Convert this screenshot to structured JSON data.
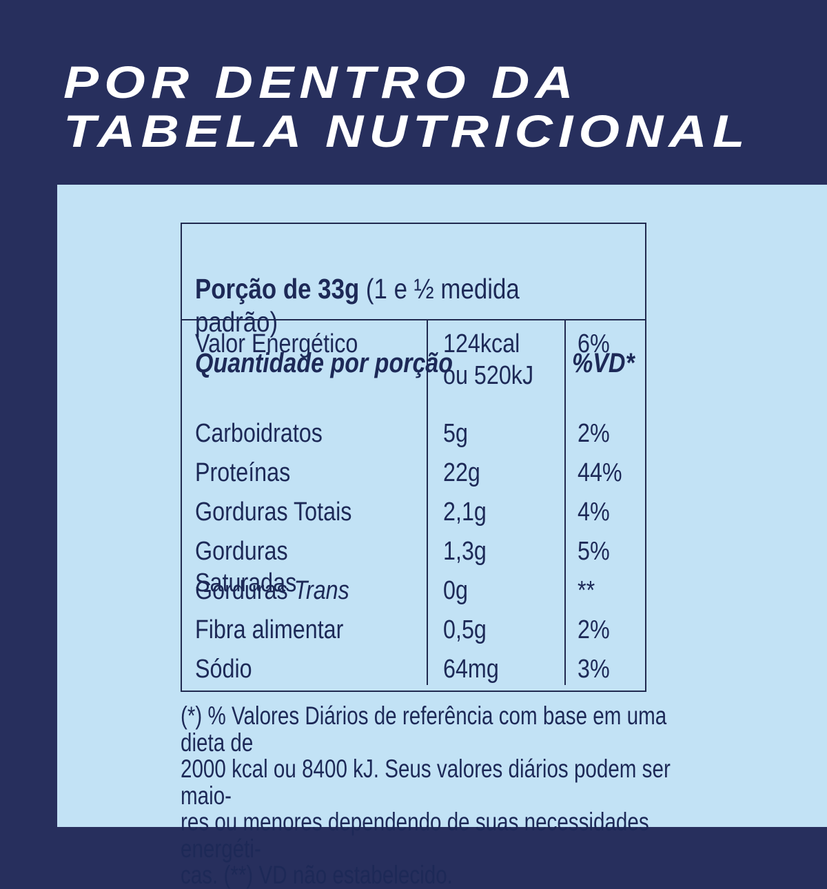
{
  "colors": {
    "background_navy": "#272f5d",
    "panel_light_blue": "#c2e2f5",
    "ink_navy": "#1d2957",
    "title_white": "#ffffff"
  },
  "title": {
    "line1": "POR DENTRO DA",
    "line2": "TABELA NUTRICIONAL"
  },
  "table": {
    "serving": {
      "label": "Porção de 33g",
      "note": "(1 e ½ medida padrão)"
    },
    "columns": {
      "quantity": "Quantidade por porção",
      "dv": "%VD*"
    },
    "rows": [
      {
        "name": "Valor Energético",
        "name_italic": "",
        "value": "124kcal\nou 520kJ",
        "dv": "6%"
      },
      {
        "name": "Carboidratos",
        "name_italic": "",
        "value": "5g",
        "dv": "2%"
      },
      {
        "name": "Proteínas",
        "name_italic": "",
        "value": "22g",
        "dv": "44%"
      },
      {
        "name": "Gorduras Totais",
        "name_italic": "",
        "value": "2,1g",
        "dv": "4%"
      },
      {
        "name": "Gorduras Saturadas",
        "name_italic": "",
        "value": "1,3g",
        "dv": "5%"
      },
      {
        "name": "Gorduras ",
        "name_italic": "Trans",
        "value": "0g",
        "dv": "**"
      },
      {
        "name": "Fibra alimentar",
        "name_italic": "",
        "value": "0,5g",
        "dv": "2%"
      },
      {
        "name": "Sódio",
        "name_italic": "",
        "value": "64mg",
        "dv": "3%"
      }
    ]
  },
  "footnote": {
    "lines": [
      "(*) % Valores Diários de referência com base em uma dieta de",
      "2000 kcal ou 8400 kJ. Seus valores diários podem ser maio-",
      "res ou menores dependendo de suas necessidades energéti-",
      "cas. (**) VD não estabelecido."
    ]
  }
}
